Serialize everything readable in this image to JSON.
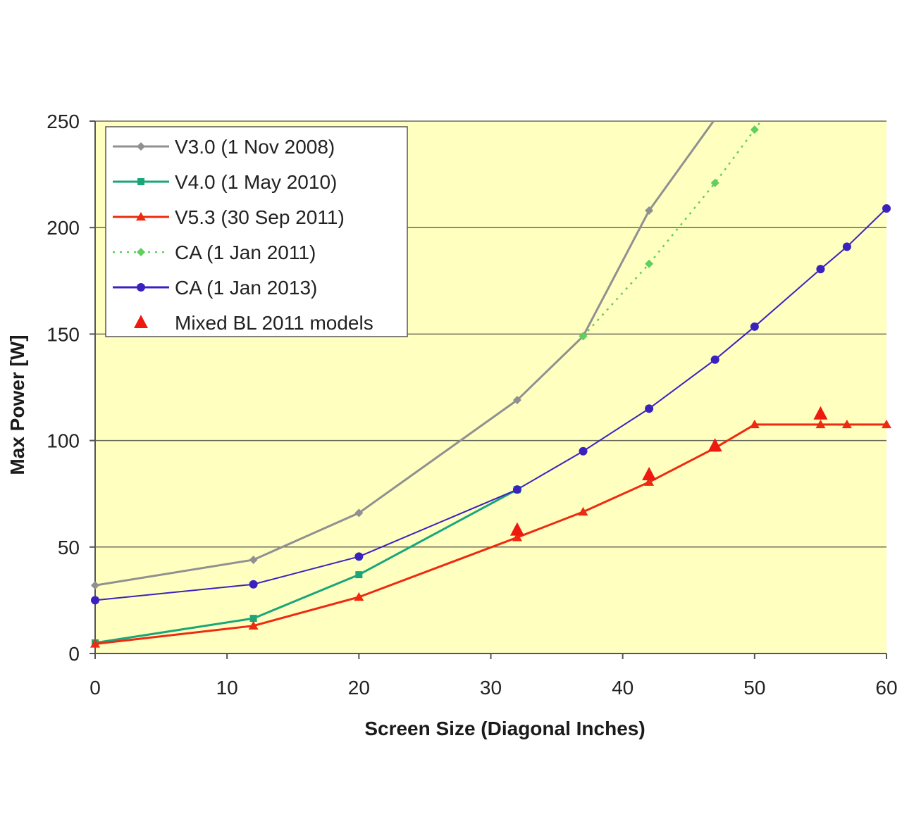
{
  "chart_data": {
    "type": "line",
    "xlabel": "Screen Size (Diagonal Inches)",
    "ylabel": "Max Power [W]",
    "xlim": [
      0,
      60
    ],
    "ylim": [
      0,
      250
    ],
    "x_ticks": [
      0,
      10,
      20,
      30,
      40,
      50,
      60
    ],
    "y_ticks": [
      0,
      50,
      100,
      150,
      200,
      250
    ],
    "grid": "horizontal",
    "legend_position": "top-left",
    "plot_background": "#ffffc0",
    "series": [
      {
        "name": "V3.0 (1 Nov 2008)",
        "color": "#909090",
        "marker": "diamond",
        "line_style": "solid",
        "x": [
          0,
          12,
          20,
          32,
          37,
          42,
          47
        ],
        "y": [
          32,
          44,
          66,
          119,
          149,
          208,
          251
        ]
      },
      {
        "name": "V4.0 (1 May 2010)",
        "color": "#1aa67a",
        "marker": "square",
        "line_style": "solid",
        "x": [
          0,
          12,
          20,
          32
        ],
        "y": [
          5,
          16.5,
          37,
          77
        ]
      },
      {
        "name": "V5.3 (30 Sep 2011)",
        "color": "#ee2a10",
        "marker": "triangle",
        "line_style": "solid",
        "x": [
          0,
          12,
          20,
          32,
          37,
          42,
          47,
          50,
          55,
          57,
          60
        ],
        "y": [
          4.5,
          13,
          26.5,
          54.5,
          66.5,
          80.5,
          96.5,
          107.5,
          107.5,
          107.5,
          107.5
        ]
      },
      {
        "name": "CA (1 Jan 2011)",
        "color": "#5fcf5f",
        "marker": "diamond",
        "line_style": "dotted",
        "x": [
          37,
          42,
          47,
          50,
          50.6
        ],
        "y": [
          149,
          183,
          221,
          246,
          251
        ]
      },
      {
        "name": "CA (1 Jan 2013)",
        "color": "#3a22c0",
        "marker": "circle",
        "line_style": "solid",
        "x": [
          0,
          12,
          20,
          32,
          37,
          42,
          47,
          50,
          55,
          57,
          60
        ],
        "y": [
          25,
          32.5,
          45.5,
          77,
          95,
          115,
          138,
          153.5,
          180.5,
          191,
          209
        ]
      },
      {
        "name": "Mixed BL 2011 models",
        "color": "#ee1a10",
        "marker": "triangle-large",
        "line_style": "none",
        "x": [
          32,
          42,
          47,
          55
        ],
        "y": [
          58,
          84,
          97.5,
          112.5
        ]
      }
    ]
  }
}
